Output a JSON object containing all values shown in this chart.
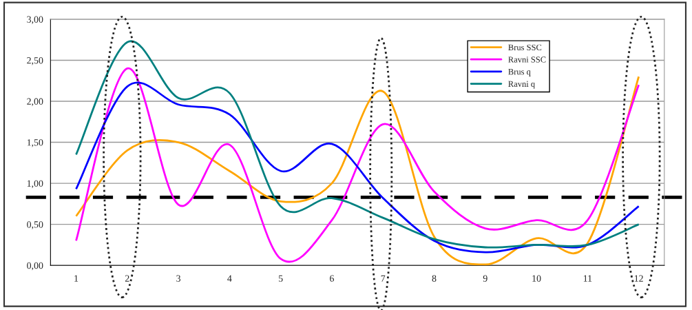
{
  "chart_data": {
    "type": "line",
    "categories": [
      "1",
      "2",
      "3",
      "4",
      "5",
      "6",
      "7",
      "8",
      "9",
      "10",
      "11",
      "12"
    ],
    "series": [
      {
        "name": "Brus SSC",
        "color": "#ffa500",
        "values": [
          0.6,
          1.4,
          1.5,
          1.15,
          0.78,
          1.0,
          2.12,
          0.35,
          0.01,
          0.33,
          0.27,
          2.3
        ]
      },
      {
        "name": "Ravni SSC",
        "color": "#ff00ff",
        "values": [
          0.3,
          2.4,
          0.74,
          1.47,
          0.08,
          0.55,
          1.72,
          0.9,
          0.45,
          0.55,
          0.55,
          2.2
        ]
      },
      {
        "name": "Brus q",
        "color": "#0000ff",
        "values": [
          0.93,
          2.18,
          1.96,
          1.84,
          1.15,
          1.48,
          0.82,
          0.3,
          0.16,
          0.25,
          0.25,
          0.72
        ]
      },
      {
        "name": "Ravni q",
        "color": "#008080",
        "values": [
          1.35,
          2.72,
          2.04,
          2.1,
          0.72,
          0.82,
          0.58,
          0.32,
          0.22,
          0.25,
          0.25,
          0.5
        ]
      }
    ],
    "ylim": [
      0,
      3
    ],
    "yticks": [
      {
        "value": 0,
        "label": "0,00"
      },
      {
        "value": 0.5,
        "label": "0,50"
      },
      {
        "value": 1,
        "label": "1,00"
      },
      {
        "value": 1.5,
        "label": "1,50"
      },
      {
        "value": 2,
        "label": "2,00"
      },
      {
        "value": 2.5,
        "label": "2,50"
      },
      {
        "value": 3,
        "label": "3,00"
      }
    ],
    "ref_lines": [
      {
        "axis": "y",
        "value": 0.83,
        "color": "#000000",
        "line_style": "dashed"
      }
    ],
    "grid": "y",
    "legend": "top right",
    "marker": "none",
    "line_style": "solid"
  }
}
